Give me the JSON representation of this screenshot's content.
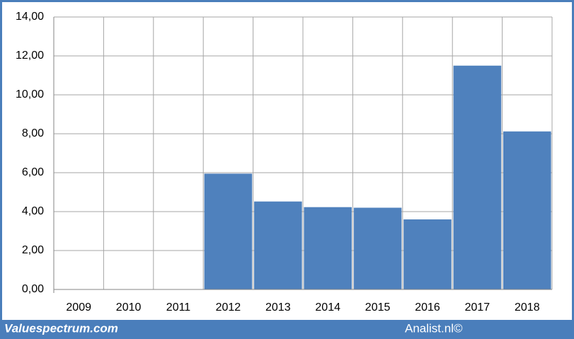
{
  "chart_data": {
    "type": "bar",
    "categories": [
      "2009",
      "2010",
      "2011",
      "2012",
      "2013",
      "2014",
      "2015",
      "2016",
      "2017",
      "2018"
    ],
    "values": [
      null,
      null,
      null,
      5.95,
      4.52,
      4.23,
      4.2,
      3.6,
      11.5,
      8.12
    ],
    "color": "#4f81bd",
    "ylim": [
      0,
      14
    ],
    "yticks": [
      {
        "value": 0,
        "label": "0,00"
      },
      {
        "value": 2,
        "label": "2,00"
      },
      {
        "value": 4,
        "label": "4,00"
      },
      {
        "value": 6,
        "label": "6,00"
      },
      {
        "value": 8,
        "label": "8,00"
      },
      {
        "value": 10,
        "label": "10,00"
      },
      {
        "value": 12,
        "label": "12,00"
      },
      {
        "value": 14,
        "label": "14,00"
      }
    ],
    "grid": true,
    "footer_left": "Valuespectrum.com",
    "footer_right": "Analist.nl©"
  }
}
